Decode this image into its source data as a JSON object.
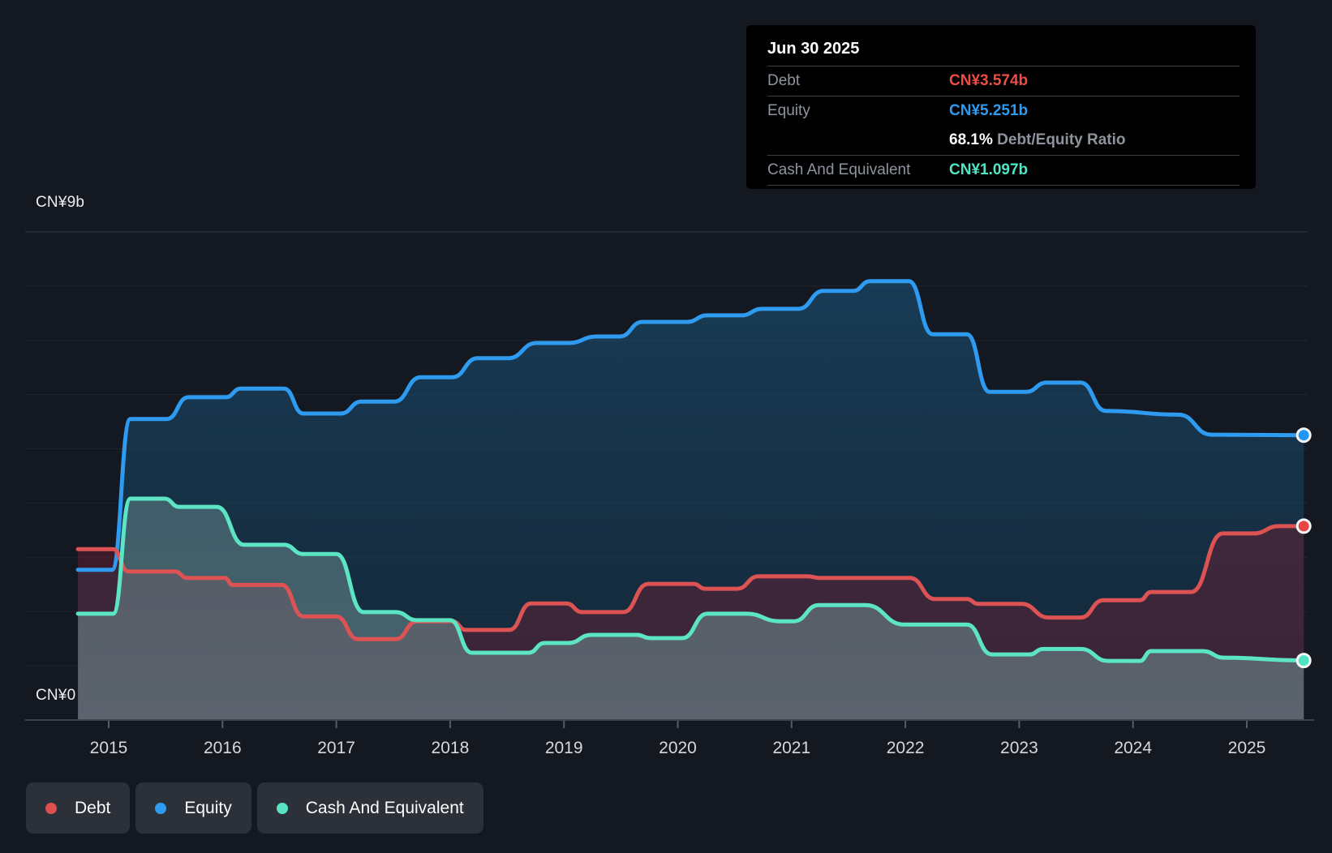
{
  "y_axis": {
    "top_label": "CN¥9b",
    "bottom_label": "CN¥0"
  },
  "x_axis": {
    "years": [
      "2015",
      "2016",
      "2017",
      "2018",
      "2019",
      "2020",
      "2021",
      "2022",
      "2023",
      "2024",
      "2025"
    ]
  },
  "tooltip": {
    "date": "Jun 30 2025",
    "debt_label": "Debt",
    "debt_value": "CN¥3.574b",
    "equity_label": "Equity",
    "equity_value": "CN¥5.251b",
    "ratio_value": "68.1%",
    "ratio_label": " Debt/Equity Ratio",
    "cash_label": "Cash And Equivalent",
    "cash_value": "CN¥1.097b"
  },
  "legend": [
    {
      "label": "Debt",
      "color": "#e04f4f"
    },
    {
      "label": "Equity",
      "color": "#2e9bf0"
    },
    {
      "label": "Cash And Equivalent",
      "color": "#57e3c4"
    }
  ],
  "colors": {
    "background": "#141821",
    "debt_line": "#dd5353",
    "equity_line": "#2e9bf0",
    "cash_line": "#5ce5c5",
    "axis_line": "#3e444e",
    "grid_line": "rgba(255,255,255,0.055)",
    "plot_top_line": "rgba(255,255,255,0.14)"
  },
  "chart_data": {
    "type": "area",
    "title": "Debt to Equity History",
    "x_unit": "year",
    "x_ticks": [
      2015,
      2016,
      2017,
      2018,
      2019,
      2020,
      2021,
      2022,
      2023,
      2024,
      2025
    ],
    "x_range": [
      2014.73,
      2025.55
    ],
    "ylim_billions": [
      0,
      9
    ],
    "y_top_label": "CN¥9b",
    "y_bottom_label": "CN¥0",
    "grid": "horizontal",
    "legend_position": "bottom",
    "last_point": {
      "date": "Jun 30 2025",
      "debt": 3.574,
      "equity": 5.251,
      "cash": 1.097,
      "debt_equity_ratio_pct": 68.1
    },
    "series": [
      {
        "name": "Equity",
        "color": "#2e9bf0",
        "unit": "CN¥ billions",
        "points": [
          [
            2014.73,
            2.77
          ],
          [
            2015.03,
            2.77
          ],
          [
            2015.19,
            5.55
          ],
          [
            2015.51,
            5.55
          ],
          [
            2015.7,
            5.95
          ],
          [
            2016.03,
            5.95
          ],
          [
            2016.16,
            6.11
          ],
          [
            2016.54,
            6.11
          ],
          [
            2016.71,
            5.65
          ],
          [
            2017.04,
            5.65
          ],
          [
            2017.22,
            5.87
          ],
          [
            2017.51,
            5.87
          ],
          [
            2017.74,
            6.32
          ],
          [
            2018.02,
            6.32
          ],
          [
            2018.24,
            6.67
          ],
          [
            2018.51,
            6.67
          ],
          [
            2018.76,
            6.95
          ],
          [
            2019.04,
            6.95
          ],
          [
            2019.29,
            7.07
          ],
          [
            2019.49,
            7.07
          ],
          [
            2019.69,
            7.34
          ],
          [
            2020.08,
            7.34
          ],
          [
            2020.26,
            7.46
          ],
          [
            2020.56,
            7.46
          ],
          [
            2020.74,
            7.58
          ],
          [
            2021.06,
            7.58
          ],
          [
            2021.28,
            7.91
          ],
          [
            2021.54,
            7.91
          ],
          [
            2021.69,
            8.09
          ],
          [
            2022.03,
            8.09
          ],
          [
            2022.24,
            7.11
          ],
          [
            2022.54,
            7.11
          ],
          [
            2022.74,
            6.05
          ],
          [
            2023.06,
            6.05
          ],
          [
            2023.24,
            6.22
          ],
          [
            2023.54,
            6.22
          ],
          [
            2023.76,
            5.7
          ],
          [
            2024.4,
            5.63
          ],
          [
            2024.69,
            5.26
          ],
          [
            2025.5,
            5.251
          ]
        ]
      },
      {
        "name": "Debt",
        "color": "#dd5353",
        "unit": "CN¥ billions",
        "points": [
          [
            2014.73,
            3.15
          ],
          [
            2015.04,
            3.15
          ],
          [
            2015.17,
            2.74
          ],
          [
            2015.58,
            2.74
          ],
          [
            2015.69,
            2.62
          ],
          [
            2016.02,
            2.62
          ],
          [
            2016.09,
            2.49
          ],
          [
            2016.52,
            2.49
          ],
          [
            2016.71,
            1.91
          ],
          [
            2017.0,
            1.91
          ],
          [
            2017.19,
            1.49
          ],
          [
            2017.52,
            1.49
          ],
          [
            2017.71,
            1.82
          ],
          [
            2018.02,
            1.82
          ],
          [
            2018.14,
            1.66
          ],
          [
            2018.52,
            1.66
          ],
          [
            2018.71,
            2.15
          ],
          [
            2019.02,
            2.15
          ],
          [
            2019.16,
            1.99
          ],
          [
            2019.52,
            1.99
          ],
          [
            2019.74,
            2.51
          ],
          [
            2020.14,
            2.51
          ],
          [
            2020.24,
            2.42
          ],
          [
            2020.52,
            2.42
          ],
          [
            2020.71,
            2.65
          ],
          [
            2021.14,
            2.65
          ],
          [
            2021.24,
            2.62
          ],
          [
            2022.04,
            2.62
          ],
          [
            2022.26,
            2.23
          ],
          [
            2022.54,
            2.23
          ],
          [
            2022.64,
            2.14
          ],
          [
            2023.02,
            2.14
          ],
          [
            2023.26,
            1.89
          ],
          [
            2023.54,
            1.89
          ],
          [
            2023.74,
            2.21
          ],
          [
            2024.06,
            2.21
          ],
          [
            2024.16,
            2.36
          ],
          [
            2024.51,
            2.36
          ],
          [
            2024.79,
            3.44
          ],
          [
            2025.06,
            3.44
          ],
          [
            2025.28,
            3.574
          ],
          [
            2025.5,
            3.574
          ]
        ]
      },
      {
        "name": "Cash And Equivalent",
        "color": "#5ce5c5",
        "unit": "CN¥ billions",
        "points": [
          [
            2014.73,
            1.96
          ],
          [
            2015.04,
            1.96
          ],
          [
            2015.19,
            4.08
          ],
          [
            2015.49,
            4.08
          ],
          [
            2015.62,
            3.93
          ],
          [
            2015.95,
            3.93
          ],
          [
            2016.19,
            3.23
          ],
          [
            2016.54,
            3.23
          ],
          [
            2016.71,
            3.06
          ],
          [
            2017.0,
            3.06
          ],
          [
            2017.24,
            1.99
          ],
          [
            2017.52,
            1.99
          ],
          [
            2017.71,
            1.84
          ],
          [
            2018.0,
            1.84
          ],
          [
            2018.19,
            1.24
          ],
          [
            2018.69,
            1.24
          ],
          [
            2018.83,
            1.42
          ],
          [
            2019.04,
            1.42
          ],
          [
            2019.24,
            1.57
          ],
          [
            2019.64,
            1.57
          ],
          [
            2019.76,
            1.51
          ],
          [
            2020.04,
            1.51
          ],
          [
            2020.26,
            1.96
          ],
          [
            2020.6,
            1.96
          ],
          [
            2020.9,
            1.82
          ],
          [
            2021.02,
            1.82
          ],
          [
            2021.24,
            2.12
          ],
          [
            2021.65,
            2.12
          ],
          [
            2021.99,
            1.76
          ],
          [
            2022.54,
            1.76
          ],
          [
            2022.76,
            1.21
          ],
          [
            2023.09,
            1.21
          ],
          [
            2023.21,
            1.31
          ],
          [
            2023.54,
            1.31
          ],
          [
            2023.78,
            1.09
          ],
          [
            2024.06,
            1.09
          ],
          [
            2024.16,
            1.27
          ],
          [
            2024.61,
            1.27
          ],
          [
            2024.8,
            1.15
          ],
          [
            2025.5,
            1.097
          ]
        ]
      }
    ]
  }
}
